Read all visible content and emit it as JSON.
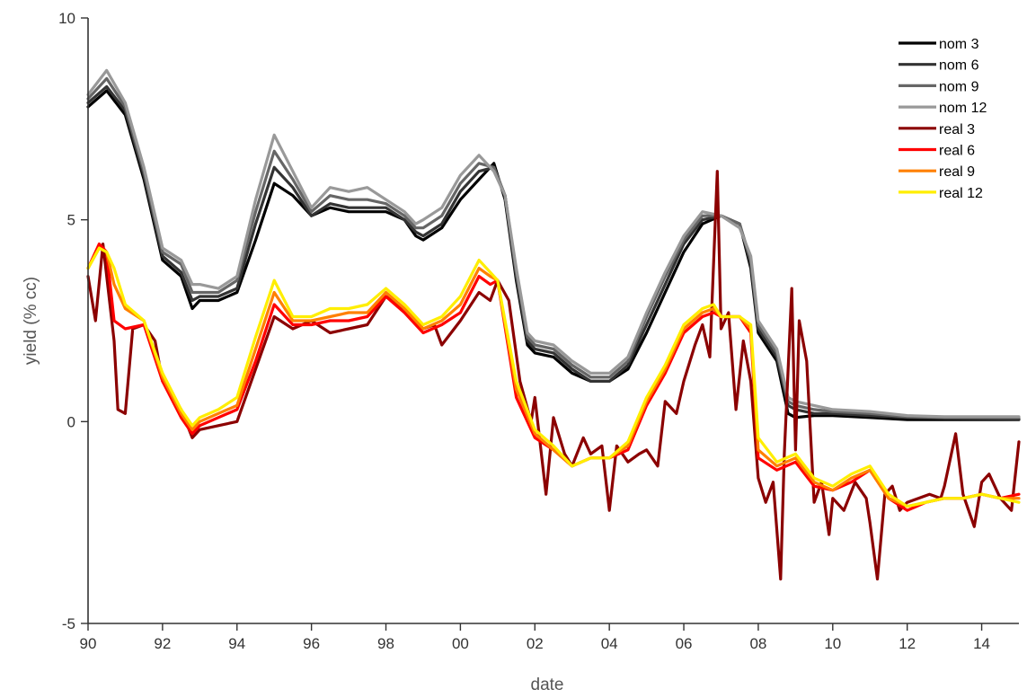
{
  "chart_data": {
    "type": "line",
    "title": "",
    "xlabel": "date",
    "ylabel": "yield (% cc)",
    "xlim": [
      1990,
      2015
    ],
    "ylim": [
      -5,
      10
    ],
    "xticks": [
      {
        "value": 1990,
        "label": "90"
      },
      {
        "value": 1992,
        "label": "92"
      },
      {
        "value": 1994,
        "label": "94"
      },
      {
        "value": 1996,
        "label": "96"
      },
      {
        "value": 1998,
        "label": "98"
      },
      {
        "value": 2000,
        "label": "00"
      },
      {
        "value": 2002,
        "label": "02"
      },
      {
        "value": 2004,
        "label": "04"
      },
      {
        "value": 2006,
        "label": "06"
      },
      {
        "value": 2008,
        "label": "08"
      },
      {
        "value": 2010,
        "label": "10"
      },
      {
        "value": 2012,
        "label": "12"
      },
      {
        "value": 2014,
        "label": "14"
      }
    ],
    "yticks": [
      {
        "value": -5,
        "label": "-5"
      },
      {
        "value": 0,
        "label": "0"
      },
      {
        "value": 5,
        "label": "5"
      },
      {
        "value": 10,
        "label": "10"
      }
    ],
    "grid": false,
    "legend_position": "top-right",
    "series": [
      {
        "name": "nom 3",
        "color": "#000000",
        "x": [
          1990.0,
          1990.5,
          1991.0,
          1991.5,
          1992.0,
          1992.5,
          1992.8,
          1993.0,
          1993.5,
          1994.0,
          1994.5,
          1995.0,
          1995.5,
          1996.0,
          1996.5,
          1997.0,
          1997.5,
          1998.0,
          1998.5,
          1998.8,
          1999.0,
          1999.5,
          2000.0,
          2000.5,
          2000.9,
          2001.2,
          2001.5,
          2001.8,
          2002.0,
          2002.5,
          2003.0,
          2003.5,
          2004.0,
          2004.5,
          2005.0,
          2005.5,
          2006.0,
          2006.5,
          2007.0,
          2007.5,
          2007.8,
          2008.0,
          2008.5,
          2008.8,
          2009.0,
          2009.5,
          2010.0,
          2011.0,
          2012.0,
          2013.0,
          2014.0,
          2015.0
        ],
        "y": [
          7.8,
          8.2,
          7.6,
          6.0,
          4.0,
          3.6,
          2.8,
          3.0,
          3.0,
          3.2,
          4.5,
          5.9,
          5.6,
          5.1,
          5.3,
          5.2,
          5.2,
          5.2,
          5.0,
          4.6,
          4.5,
          4.8,
          5.5,
          6.0,
          6.4,
          5.5,
          3.5,
          1.9,
          1.7,
          1.6,
          1.2,
          1.0,
          1.0,
          1.3,
          2.2,
          3.2,
          4.2,
          4.9,
          5.1,
          4.9,
          3.8,
          2.2,
          1.5,
          0.2,
          0.1,
          0.15,
          0.15,
          0.1,
          0.05,
          0.05,
          0.05,
          0.05
        ]
      },
      {
        "name": "nom 6",
        "color": "#333333",
        "x": [
          1990.0,
          1990.5,
          1991.0,
          1991.5,
          1992.0,
          1992.5,
          1992.8,
          1993.0,
          1993.5,
          1994.0,
          1994.5,
          1995.0,
          1995.5,
          1996.0,
          1996.5,
          1997.0,
          1997.5,
          1998.0,
          1998.5,
          1998.8,
          1999.0,
          1999.5,
          2000.0,
          2000.5,
          2000.9,
          2001.2,
          2001.5,
          2001.8,
          2002.0,
          2002.5,
          2003.0,
          2003.5,
          2004.0,
          2004.5,
          2005.0,
          2005.5,
          2006.0,
          2006.5,
          2007.0,
          2007.5,
          2007.8,
          2008.0,
          2008.5,
          2008.8,
          2009.0,
          2009.5,
          2010.0,
          2011.0,
          2012.0,
          2013.0,
          2014.0,
          2015.0
        ],
        "y": [
          7.9,
          8.3,
          7.7,
          6.1,
          4.1,
          3.7,
          3.0,
          3.1,
          3.1,
          3.3,
          4.9,
          6.3,
          5.8,
          5.1,
          5.4,
          5.3,
          5.3,
          5.3,
          5.0,
          4.7,
          4.6,
          4.9,
          5.7,
          6.2,
          6.3,
          5.6,
          3.6,
          2.0,
          1.8,
          1.7,
          1.3,
          1.0,
          1.0,
          1.4,
          2.4,
          3.4,
          4.4,
          5.0,
          5.1,
          4.9,
          3.9,
          2.3,
          1.6,
          0.4,
          0.3,
          0.2,
          0.2,
          0.15,
          0.1,
          0.08,
          0.07,
          0.06
        ]
      },
      {
        "name": "nom 9",
        "color": "#666666",
        "x": [
          1990.0,
          1990.5,
          1991.0,
          1991.5,
          1992.0,
          1992.5,
          1992.8,
          1993.0,
          1993.5,
          1994.0,
          1994.5,
          1995.0,
          1995.5,
          1996.0,
          1996.5,
          1997.0,
          1997.5,
          1998.0,
          1998.5,
          1998.8,
          1999.0,
          1999.5,
          2000.0,
          2000.5,
          2000.9,
          2001.2,
          2001.5,
          2001.8,
          2002.0,
          2002.5,
          2003.0,
          2003.5,
          2004.0,
          2004.5,
          2005.0,
          2005.5,
          2006.0,
          2006.5,
          2007.0,
          2007.5,
          2007.8,
          2008.0,
          2008.5,
          2008.8,
          2009.0,
          2009.5,
          2010.0,
          2011.0,
          2012.0,
          2013.0,
          2014.0,
          2015.0
        ],
        "y": [
          8.0,
          8.5,
          7.8,
          6.2,
          4.2,
          3.9,
          3.2,
          3.2,
          3.2,
          3.5,
          5.2,
          6.7,
          6.0,
          5.2,
          5.6,
          5.5,
          5.5,
          5.4,
          5.1,
          4.8,
          4.8,
          5.1,
          5.9,
          6.4,
          6.3,
          5.6,
          3.7,
          2.1,
          1.9,
          1.8,
          1.4,
          1.1,
          1.1,
          1.5,
          2.6,
          3.6,
          4.5,
          5.1,
          5.1,
          4.9,
          4.0,
          2.4,
          1.7,
          0.5,
          0.4,
          0.3,
          0.25,
          0.2,
          0.12,
          0.1,
          0.1,
          0.1
        ]
      },
      {
        "name": "nom 12",
        "color": "#999999",
        "x": [
          1990.0,
          1990.5,
          1991.0,
          1991.5,
          1992.0,
          1992.5,
          1992.8,
          1993.0,
          1993.5,
          1994.0,
          1994.5,
          1995.0,
          1995.5,
          1996.0,
          1996.5,
          1997.0,
          1997.5,
          1998.0,
          1998.5,
          1998.8,
          1999.0,
          1999.5,
          2000.0,
          2000.5,
          2000.9,
          2001.2,
          2001.5,
          2001.8,
          2002.0,
          2002.5,
          2003.0,
          2003.5,
          2004.0,
          2004.5,
          2005.0,
          2005.5,
          2006.0,
          2006.5,
          2007.0,
          2007.5,
          2007.8,
          2008.0,
          2008.5,
          2008.8,
          2009.0,
          2009.5,
          2010.0,
          2011.0,
          2012.0,
          2013.0,
          2014.0,
          2015.0
        ],
        "y": [
          8.1,
          8.7,
          7.9,
          6.3,
          4.3,
          4.0,
          3.4,
          3.4,
          3.3,
          3.6,
          5.5,
          7.1,
          6.2,
          5.3,
          5.8,
          5.7,
          5.8,
          5.5,
          5.2,
          4.9,
          5.0,
          5.3,
          6.1,
          6.6,
          6.2,
          5.6,
          3.8,
          2.2,
          2.0,
          1.9,
          1.5,
          1.2,
          1.2,
          1.6,
          2.7,
          3.7,
          4.6,
          5.2,
          5.1,
          4.8,
          4.1,
          2.5,
          1.8,
          0.6,
          0.5,
          0.4,
          0.3,
          0.25,
          0.15,
          0.12,
          0.12,
          0.12
        ]
      },
      {
        "name": "real 3",
        "color": "#8b0000",
        "x": [
          1990.0,
          1990.2,
          1990.4,
          1990.7,
          1990.8,
          1991.0,
          1991.2,
          1991.5,
          1991.8,
          1992.0,
          1992.5,
          1992.8,
          1993.0,
          1993.5,
          1994.0,
          1994.5,
          1995.0,
          1995.5,
          1996.0,
          1996.5,
          1997.0,
          1997.5,
          1998.0,
          1998.5,
          1999.0,
          1999.3,
          1999.5,
          2000.0,
          2000.5,
          2000.8,
          2001.0,
          2001.3,
          2001.6,
          2001.9,
          2002.0,
          2002.3,
          2002.5,
          2002.8,
          2003.0,
          2003.3,
          2003.5,
          2003.8,
          2004.0,
          2004.2,
          2004.5,
          2004.8,
          2005.0,
          2005.3,
          2005.5,
          2005.8,
          2006.0,
          2006.3,
          2006.5,
          2006.7,
          2006.9,
          2007.0,
          2007.2,
          2007.4,
          2007.6,
          2007.8,
          2008.0,
          2008.2,
          2008.4,
          2008.6,
          2008.7,
          2008.9,
          2009.0,
          2009.1,
          2009.3,
          2009.5,
          2009.7,
          2009.9,
          2010.0,
          2010.3,
          2010.6,
          2010.9,
          2011.0,
          2011.2,
          2011.4,
          2011.6,
          2011.8,
          2012.0,
          2012.3,
          2012.6,
          2012.9,
          2013.0,
          2013.3,
          2013.5,
          2013.8,
          2014.0,
          2014.2,
          2014.5,
          2014.8,
          2015.0
        ],
        "y": [
          3.6,
          2.5,
          4.4,
          2.0,
          0.3,
          0.2,
          2.3,
          2.4,
          2.0,
          1.0,
          0.3,
          -0.4,
          -0.2,
          -0.1,
          0.0,
          1.3,
          2.6,
          2.3,
          2.5,
          2.2,
          2.3,
          2.4,
          3.1,
          2.8,
          2.3,
          2.4,
          1.9,
          2.5,
          3.2,
          3.0,
          3.5,
          3.0,
          1.0,
          0.0,
          0.6,
          -1.8,
          0.1,
          -0.8,
          -1.1,
          -0.4,
          -0.8,
          -0.6,
          -2.2,
          -0.6,
          -1.0,
          -0.8,
          -0.7,
          -1.1,
          0.5,
          0.2,
          1.0,
          1.9,
          2.4,
          1.6,
          6.2,
          2.3,
          2.7,
          0.3,
          2.0,
          1.0,
          -1.4,
          -2.0,
          -1.5,
          -3.9,
          -0.8,
          3.3,
          -0.7,
          2.5,
          1.5,
          -2.0,
          -1.5,
          -2.8,
          -1.9,
          -2.2,
          -1.5,
          -1.9,
          -2.5,
          -3.9,
          -1.8,
          -1.6,
          -2.2,
          -2.0,
          -1.9,
          -1.8,
          -1.9,
          -1.6,
          -0.3,
          -1.8,
          -2.6,
          -1.5,
          -1.3,
          -1.9,
          -2.2,
          -0.5
        ]
      },
      {
        "name": "real 6",
        "color": "#ff0000",
        "x": [
          1990.0,
          1990.3,
          1990.5,
          1990.7,
          1991.0,
          1991.5,
          1992.0,
          1992.5,
          1992.8,
          1993.0,
          1993.5,
          1994.0,
          1994.5,
          1995.0,
          1995.5,
          1996.0,
          1996.5,
          1997.0,
          1997.5,
          1998.0,
          1998.5,
          1999.0,
          1999.5,
          2000.0,
          2000.5,
          2000.8,
          2001.0,
          2001.5,
          2002.0,
          2002.5,
          2003.0,
          2003.5,
          2004.0,
          2004.5,
          2005.0,
          2005.5,
          2006.0,
          2006.5,
          2006.8,
          2007.0,
          2007.5,
          2007.8,
          2008.0,
          2008.5,
          2009.0,
          2009.5,
          2010.0,
          2010.5,
          2011.0,
          2011.5,
          2012.0,
          2012.5,
          2013.0,
          2013.5,
          2014.0,
          2014.5,
          2015.0
        ],
        "y": [
          3.8,
          4.4,
          4.2,
          2.5,
          2.3,
          2.4,
          1.0,
          0.1,
          -0.3,
          -0.1,
          0.1,
          0.3,
          1.5,
          2.9,
          2.4,
          2.4,
          2.5,
          2.5,
          2.6,
          3.1,
          2.7,
          2.2,
          2.4,
          2.7,
          3.6,
          3.4,
          3.5,
          0.6,
          -0.4,
          -0.7,
          -1.1,
          -0.9,
          -0.9,
          -0.7,
          0.4,
          1.2,
          2.2,
          2.6,
          2.7,
          2.6,
          2.6,
          2.2,
          -0.9,
          -1.2,
          -1.0,
          -1.6,
          -1.7,
          -1.5,
          -1.2,
          -1.9,
          -2.2,
          -2.0,
          -1.9,
          -1.9,
          -1.8,
          -1.9,
          -1.8
        ]
      },
      {
        "name": "real 9",
        "color": "#ff8000",
        "x": [
          1990.0,
          1990.3,
          1990.5,
          1990.7,
          1991.0,
          1991.5,
          1992.0,
          1992.5,
          1992.8,
          1993.0,
          1993.5,
          1994.0,
          1994.5,
          1995.0,
          1995.5,
          1996.0,
          1996.5,
          1997.0,
          1997.5,
          1998.0,
          1998.5,
          1999.0,
          1999.5,
          2000.0,
          2000.5,
          2000.8,
          2001.0,
          2001.5,
          2002.0,
          2002.5,
          2003.0,
          2003.5,
          2004.0,
          2004.5,
          2005.0,
          2005.5,
          2006.0,
          2006.5,
          2006.8,
          2007.0,
          2007.5,
          2007.8,
          2008.0,
          2008.5,
          2009.0,
          2009.5,
          2010.0,
          2010.5,
          2011.0,
          2011.5,
          2012.0,
          2012.5,
          2013.0,
          2013.5,
          2014.0,
          2014.5,
          2015.0
        ],
        "y": [
          3.8,
          4.3,
          4.2,
          3.4,
          2.8,
          2.5,
          1.1,
          0.2,
          -0.2,
          0.0,
          0.2,
          0.4,
          1.8,
          3.2,
          2.5,
          2.5,
          2.6,
          2.7,
          2.7,
          3.2,
          2.8,
          2.3,
          2.5,
          2.9,
          3.8,
          3.6,
          3.5,
          0.8,
          -0.3,
          -0.7,
          -1.1,
          -0.9,
          -0.9,
          -0.6,
          0.5,
          1.3,
          2.3,
          2.7,
          2.8,
          2.6,
          2.6,
          2.3,
          -0.7,
          -1.1,
          -0.9,
          -1.5,
          -1.7,
          -1.4,
          -1.2,
          -1.9,
          -2.1,
          -2.0,
          -1.9,
          -1.9,
          -1.8,
          -1.9,
          -1.9
        ]
      },
      {
        "name": "real 12",
        "color": "#ffee00",
        "x": [
          1990.0,
          1990.3,
          1990.5,
          1990.7,
          1991.0,
          1991.5,
          1992.0,
          1992.5,
          1992.8,
          1993.0,
          1993.5,
          1994.0,
          1994.5,
          1995.0,
          1995.5,
          1996.0,
          1996.5,
          1997.0,
          1997.5,
          1998.0,
          1998.5,
          1999.0,
          1999.5,
          2000.0,
          2000.5,
          2000.8,
          2001.0,
          2001.5,
          2002.0,
          2002.5,
          2003.0,
          2003.5,
          2004.0,
          2004.5,
          2005.0,
          2005.5,
          2006.0,
          2006.5,
          2006.8,
          2007.0,
          2007.5,
          2007.8,
          2008.0,
          2008.5,
          2009.0,
          2009.5,
          2010.0,
          2010.5,
          2011.0,
          2011.5,
          2012.0,
          2012.5,
          2013.0,
          2013.5,
          2014.0,
          2014.5,
          2015.0
        ],
        "y": [
          3.8,
          4.3,
          4.2,
          3.8,
          2.9,
          2.5,
          1.2,
          0.3,
          -0.1,
          0.1,
          0.3,
          0.6,
          2.1,
          3.5,
          2.6,
          2.6,
          2.8,
          2.8,
          2.9,
          3.3,
          2.9,
          2.4,
          2.6,
          3.1,
          4.0,
          3.7,
          3.5,
          1.0,
          -0.2,
          -0.6,
          -1.1,
          -0.9,
          -0.9,
          -0.5,
          0.6,
          1.4,
          2.4,
          2.8,
          2.9,
          2.6,
          2.6,
          2.4,
          -0.4,
          -1.0,
          -0.8,
          -1.4,
          -1.6,
          -1.3,
          -1.1,
          -1.8,
          -2.1,
          -2.0,
          -1.9,
          -1.9,
          -1.8,
          -1.9,
          -2.0
        ]
      }
    ]
  }
}
